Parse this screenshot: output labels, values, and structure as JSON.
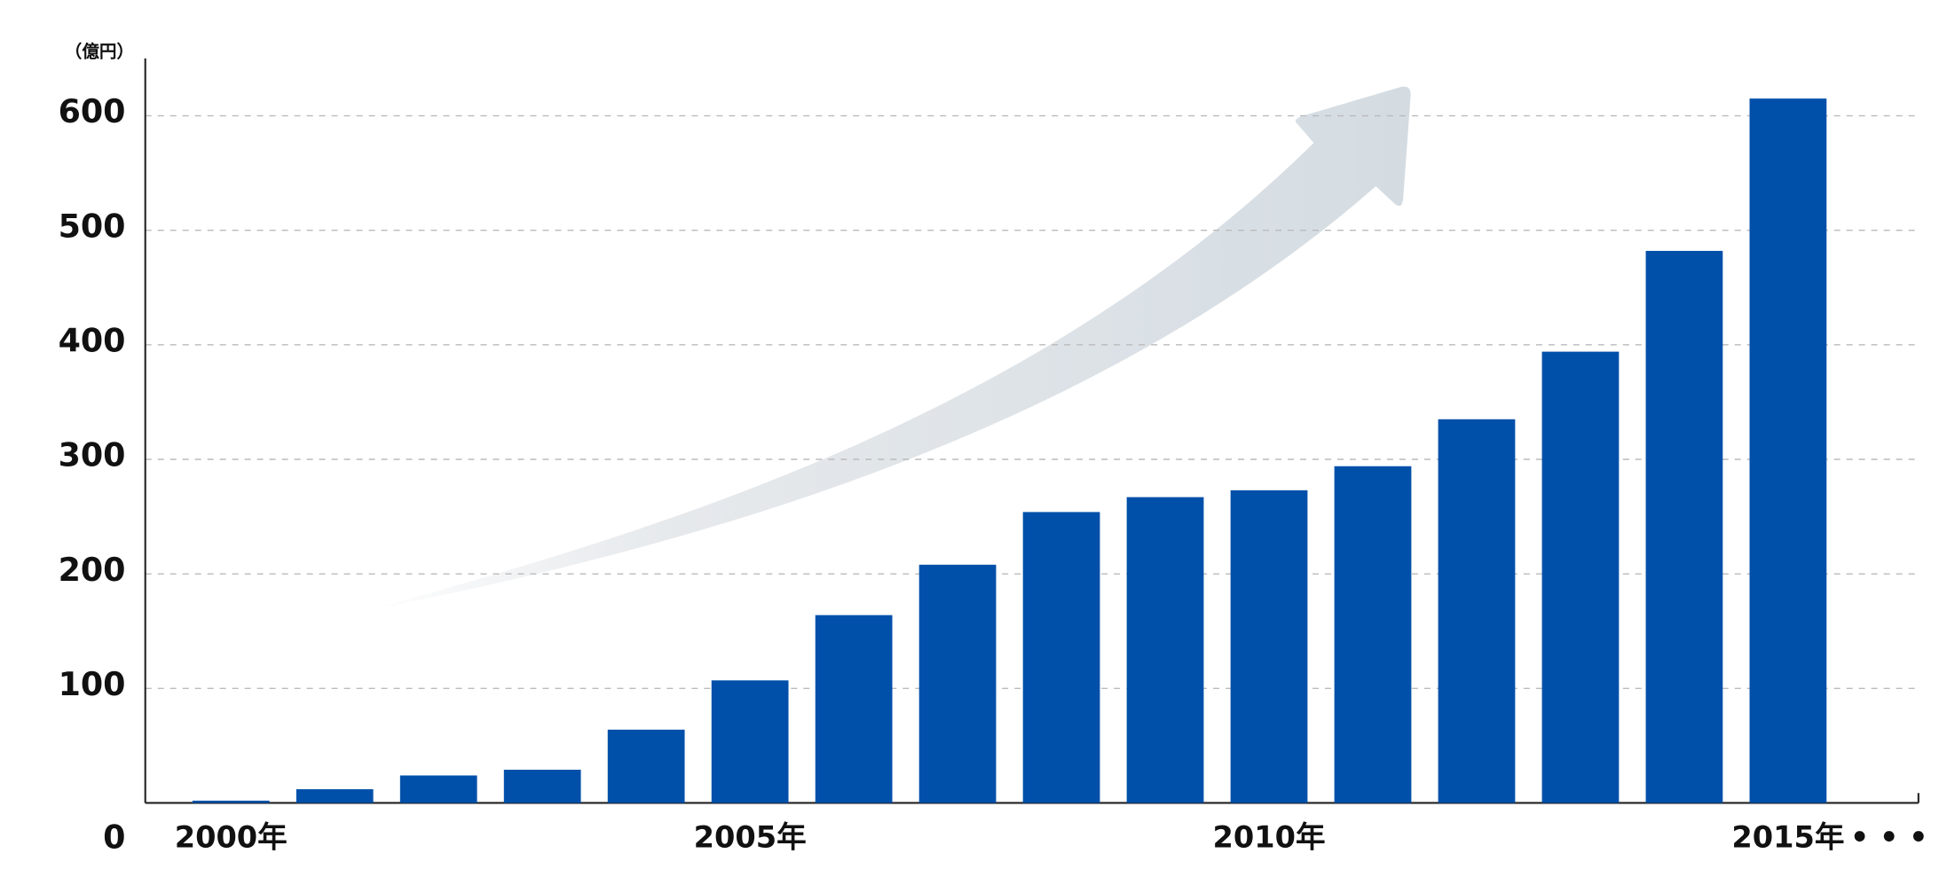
{
  "chart_data": {
    "type": "bar",
    "y_label": "（億円）",
    "categories": [
      "2000年",
      null,
      null,
      null,
      null,
      "2005年",
      null,
      null,
      null,
      null,
      "2010年",
      null,
      null,
      null,
      null,
      "2015年"
    ],
    "values": [
      2,
      12,
      24,
      29,
      64,
      107,
      164,
      208,
      254,
      267,
      273,
      294,
      335,
      394,
      482,
      615
    ],
    "color": "#0050aa",
    "ylim": [
      0,
      650
    ],
    "yticks": [
      0,
      100,
      200,
      300,
      400,
      500,
      600
    ],
    "grid": true,
    "continuation": "• • •"
  }
}
